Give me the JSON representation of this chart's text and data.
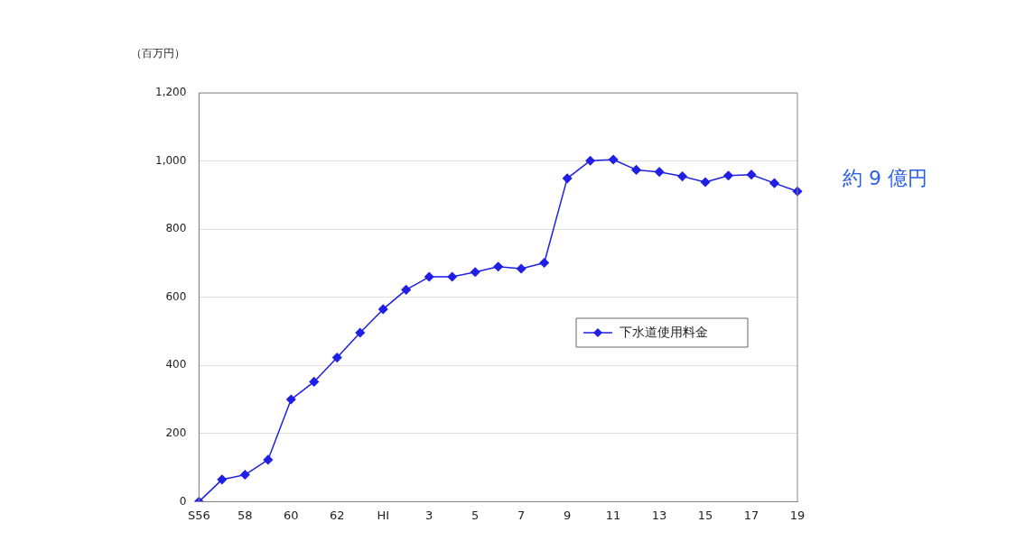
{
  "chart_data": {
    "type": "line",
    "ylabel": "（百万円）",
    "categories": [
      "S56",
      null,
      "58",
      null,
      "60",
      null,
      "62",
      null,
      "HI",
      null,
      "3",
      null,
      "5",
      null,
      "7",
      null,
      "9",
      null,
      "11",
      null,
      "13",
      null,
      "15",
      null,
      "17",
      null,
      "19"
    ],
    "series": [
      {
        "name": "下水道使用料金",
        "color": "#1f1fe6",
        "values": [
          0,
          65,
          79,
          123,
          300,
          352,
          423,
          496,
          565,
          622,
          660,
          660,
          674,
          690,
          684,
          701,
          949,
          1001,
          1004,
          974,
          968,
          955,
          938,
          957,
          960,
          935,
          911
        ]
      }
    ],
    "ylim": [
      0,
      1200
    ],
    "yticks": [
      0,
      200,
      400,
      600,
      800,
      {
        "value": 1000,
        "label": "1,000"
      },
      {
        "value": 1200,
        "label": "1,200"
      }
    ],
    "grid": "y",
    "legend": "right",
    "marker": "diamond",
    "line_style": "solid",
    "annotations": [
      "約 9 億円"
    ]
  }
}
